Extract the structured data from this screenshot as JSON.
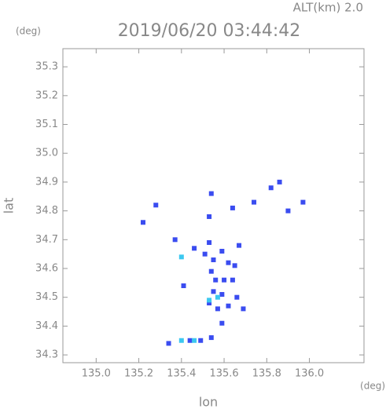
{
  "chart_data": {
    "type": "scatter",
    "title": "2019/06/20 03:44:42",
    "annotation": "ALT(km) 2.0",
    "y_unit": "(deg)",
    "x_unit": "(deg)",
    "y_label": "lat",
    "x_label": "lon",
    "xlim": [
      134.844,
      136.256
    ],
    "ylim": [
      34.273,
      35.363
    ],
    "xticks": [
      {
        "value": 135,
        "label": "135.0"
      },
      135.2,
      135.4,
      135.6,
      135.8,
      {
        "value": 136,
        "label": "136.0"
      }
    ],
    "yticks": [
      34.3,
      34.4,
      34.5,
      34.6,
      34.7,
      34.8,
      34.9,
      {
        "value": 35,
        "label": "35.0"
      },
      35.1,
      35.2,
      35.3
    ],
    "series": [
      {
        "color": "#3a4cf0",
        "x": [
          135.22,
          135.28,
          135.37,
          135.53,
          135.54,
          135.64,
          135.74,
          135.82,
          135.86,
          135.9,
          135.97,
          135.46,
          135.53,
          135.51,
          135.59,
          135.67,
          135.55,
          135.62,
          135.65,
          135.54,
          135.56,
          135.6,
          135.64,
          135.55,
          135.59,
          135.66,
          135.62,
          135.69,
          135.57,
          135.53,
          135.59,
          135.41,
          135.34,
          135.44,
          135.49,
          135.54
        ],
        "values": [
          34.76,
          34.82,
          34.7,
          34.78,
          34.86,
          34.81,
          34.83,
          34.88,
          34.9,
          34.8,
          34.83,
          34.67,
          34.69,
          34.65,
          34.66,
          34.68,
          34.63,
          34.62,
          34.61,
          34.59,
          34.56,
          34.56,
          34.56,
          34.52,
          34.51,
          34.5,
          34.47,
          34.46,
          34.46,
          34.48,
          34.41,
          34.54,
          34.34,
          34.35,
          34.35,
          34.36
        ]
      },
      {
        "color": "#3cc8f0",
        "x": [
          135.4,
          135.53,
          135.57,
          135.4,
          135.46
        ],
        "values": [
          34.64,
          34.49,
          34.5,
          34.35,
          34.35
        ]
      }
    ]
  }
}
